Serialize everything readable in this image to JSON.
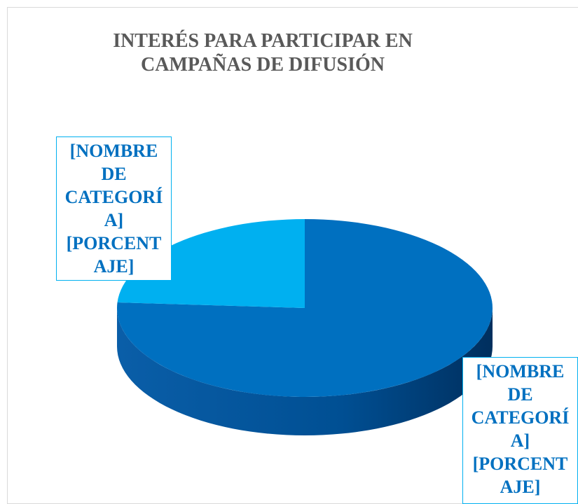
{
  "chart_data": {
    "type": "pie3d",
    "title": "INTERÉS PARA PARTICIPAR EN CAMPAÑAS DE DIFUSIÓN",
    "categories": [
      null,
      null
    ],
    "values": [
      76,
      24
    ],
    "data_labels": [
      "[NOMBRE DE CATEGORÍA] [PORCENTAJE]",
      "[NOMBRE DE CATEGORÍA] [PORCENTAJE]"
    ],
    "colors": [
      "#0070c0",
      "#00b0f0"
    ]
  }
}
